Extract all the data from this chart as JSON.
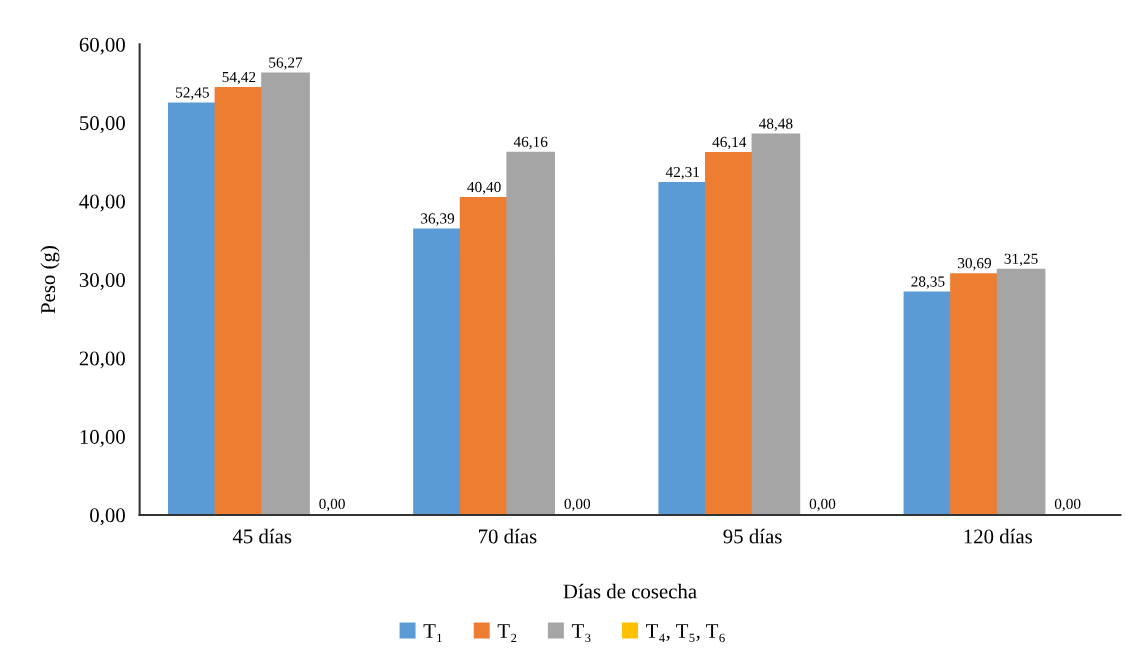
{
  "chart_data": {
    "type": "bar",
    "xlabel": "Días de cosecha",
    "ylabel": "Peso (g)",
    "categories": [
      "45 días",
      "70 días",
      "95 días",
      "120 días"
    ],
    "series": [
      {
        "name": "T₁",
        "color": "#5b9bd5",
        "values": [
          52.45,
          36.39,
          42.31,
          28.35
        ],
        "value_labels": [
          "52,45",
          "36,39",
          "42,31",
          "28,35"
        ]
      },
      {
        "name": "T₂",
        "color": "#ed7d31",
        "values": [
          54.42,
          40.4,
          46.14,
          30.69
        ],
        "value_labels": [
          "54,42",
          "40,40",
          "46,14",
          "30,69"
        ]
      },
      {
        "name": "T₃",
        "color": "#a5a5a5",
        "values": [
          56.27,
          46.16,
          48.48,
          31.25
        ],
        "value_labels": [
          "56,27",
          "46,16",
          "48,48",
          "31,25"
        ]
      },
      {
        "name": "T₄, T₅, T₆",
        "color": "#ffc000",
        "values": [
          0,
          0,
          0,
          0
        ],
        "value_labels": [
          "0,00",
          "0,00",
          "0,00",
          "0,00"
        ]
      }
    ],
    "ylim": [
      0,
      60
    ],
    "yticks": [
      {
        "value": 0,
        "label": "0,00"
      },
      {
        "value": 10,
        "label": "10,00"
      },
      {
        "value": 20,
        "label": "20,00"
      },
      {
        "value": 30,
        "label": "30,00"
      },
      {
        "value": 40,
        "label": "40,00"
      },
      {
        "value": 50,
        "label": "50,00"
      },
      {
        "value": 60,
        "label": "60,00"
      }
    ],
    "grid": false,
    "legend": "bottom"
  }
}
